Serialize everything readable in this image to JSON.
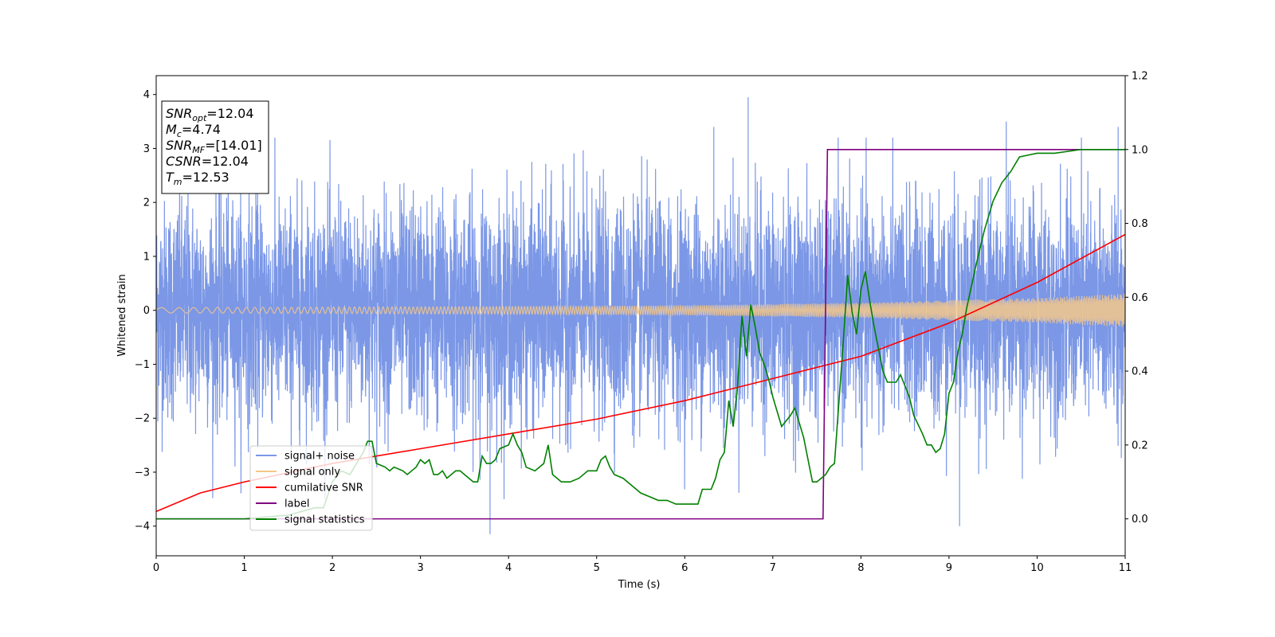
{
  "chart_data": {
    "type": "line",
    "xlabel": "Time (s)",
    "ylabel": "Whitened strain",
    "xlim": [
      0,
      11
    ],
    "ylim": [
      -4.55,
      4.35
    ],
    "y2lim": [
      -0.1,
      1.2
    ],
    "x_ticks": [
      "0",
      "1",
      "2",
      "3",
      "4",
      "5",
      "6",
      "7",
      "8",
      "9",
      "10",
      "11"
    ],
    "y_ticks": [
      "4",
      "3",
      "2",
      "1",
      "0",
      "−1",
      "−2",
      "−3",
      "−4"
    ],
    "y2_ticks": [
      "1.2",
      "1.0",
      "0.8",
      "0.6",
      "0.4",
      "0.2",
      "0.0"
    ],
    "grid": false,
    "legend": {
      "location": "lower-left",
      "entries": [
        "signal+ noise",
        "signal only",
        "cumilative SNR",
        "label",
        "signal statistics"
      ]
    },
    "annotation": [
      {
        "base": "SNR",
        "sub": "opt",
        "value": "=12.04"
      },
      {
        "base": "M",
        "sub": "c",
        "value": "=4.74"
      },
      {
        "base": "SNR",
        "sub": "MF",
        "value": "=[14.01]"
      },
      {
        "base": "CSNR",
        "sub": "",
        "value": "=12.04"
      },
      {
        "base": "T",
        "sub": "m",
        "value": "=12.53"
      }
    ],
    "series": [
      {
        "name": "signal+ noise",
        "axis": "left",
        "color": "#7b97e6",
        "description": "whitened noisy strain, roughly N(0,1) across 0-11 s",
        "noise_std": 1.0,
        "spikes": [
          [
            6.72,
            3.95
          ],
          [
            3.79,
            -4.15
          ],
          [
            9.12,
            -4.0
          ],
          [
            6.33,
            3.4
          ],
          [
            9.65,
            3.5
          ],
          [
            10.92,
            3.4
          ]
        ]
      },
      {
        "name": "signal only",
        "axis": "left",
        "color": "#f4c78a",
        "description": "chirp signal, amplitude grows with time",
        "amplitude": {
          "x": [
            0,
            2,
            4,
            6,
            8,
            10,
            11
          ],
          "y": [
            0.05,
            0.06,
            0.07,
            0.09,
            0.14,
            0.23,
            0.31
          ]
        }
      },
      {
        "name": "cumilative SNR",
        "axis": "right",
        "color": "#ff0000",
        "x": [
          0,
          0.5,
          1,
          2,
          3,
          4,
          5,
          6,
          7,
          8,
          9,
          10,
          11
        ],
        "y": [
          0.02,
          0.07,
          0.1,
          0.15,
          0.19,
          0.23,
          0.27,
          0.32,
          0.38,
          0.44,
          0.53,
          0.64,
          0.77
        ]
      },
      {
        "name": "label",
        "axis": "right",
        "color": "#800080",
        "x": [
          0,
          7.57,
          7.62,
          11
        ],
        "y": [
          0.0,
          0.0,
          1.0,
          1.0
        ]
      },
      {
        "name": "signal statistics",
        "axis": "right",
        "color": "#008000",
        "x": [
          0,
          0.5,
          1,
          1.5,
          1.8,
          1.9,
          2.0,
          2.1,
          2.2,
          2.35,
          2.4,
          2.45,
          2.5,
          2.6,
          2.65,
          2.7,
          2.8,
          2.85,
          2.9,
          2.95,
          3.0,
          3.05,
          3.1,
          3.15,
          3.2,
          3.25,
          3.3,
          3.35,
          3.4,
          3.45,
          3.5,
          3.6,
          3.65,
          3.7,
          3.75,
          3.8,
          3.85,
          3.9,
          4.0,
          4.05,
          4.1,
          4.15,
          4.2,
          4.3,
          4.4,
          4.45,
          4.5,
          4.55,
          4.6,
          4.7,
          4.8,
          4.9,
          5.0,
          5.05,
          5.1,
          5.15,
          5.2,
          5.3,
          5.4,
          5.5,
          5.6,
          5.7,
          5.8,
          5.9,
          6.0,
          6.1,
          6.15,
          6.2,
          6.3,
          6.35,
          6.4,
          6.45,
          6.5,
          6.55,
          6.6,
          6.65,
          6.7,
          6.75,
          6.8,
          6.85,
          6.9,
          6.95,
          7.0,
          7.1,
          7.2,
          7.25,
          7.3,
          7.35,
          7.4,
          7.45,
          7.5,
          7.6,
          7.65,
          7.7,
          7.8,
          7.85,
          7.9,
          7.95,
          8.0,
          8.05,
          8.1,
          8.15,
          8.2,
          8.25,
          8.3,
          8.4,
          8.45,
          8.5,
          8.55,
          8.6,
          8.7,
          8.75,
          8.8,
          8.85,
          8.9,
          8.95,
          9.0,
          9.05,
          9.1,
          9.15,
          9.2,
          9.3,
          9.4,
          9.5,
          9.6,
          9.7,
          9.8,
          9.9,
          10.0,
          10.2,
          10.5,
          11.0
        ],
        "y": [
          0.0,
          0.0,
          0.0,
          0.01,
          0.03,
          0.03,
          0.1,
          0.13,
          0.12,
          0.18,
          0.21,
          0.21,
          0.15,
          0.14,
          0.13,
          0.14,
          0.13,
          0.12,
          0.13,
          0.14,
          0.16,
          0.15,
          0.16,
          0.12,
          0.12,
          0.13,
          0.11,
          0.12,
          0.13,
          0.13,
          0.12,
          0.1,
          0.1,
          0.17,
          0.15,
          0.15,
          0.16,
          0.19,
          0.2,
          0.23,
          0.2,
          0.18,
          0.14,
          0.13,
          0.15,
          0.2,
          0.12,
          0.11,
          0.1,
          0.1,
          0.11,
          0.13,
          0.13,
          0.16,
          0.17,
          0.14,
          0.12,
          0.11,
          0.09,
          0.07,
          0.06,
          0.05,
          0.05,
          0.04,
          0.04,
          0.04,
          0.04,
          0.08,
          0.08,
          0.11,
          0.16,
          0.18,
          0.32,
          0.25,
          0.36,
          0.55,
          0.44,
          0.58,
          0.52,
          0.45,
          0.42,
          0.38,
          0.33,
          0.25,
          0.28,
          0.3,
          0.26,
          0.22,
          0.16,
          0.1,
          0.1,
          0.12,
          0.14,
          0.15,
          0.48,
          0.66,
          0.56,
          0.5,
          0.62,
          0.67,
          0.59,
          0.52,
          0.46,
          0.4,
          0.37,
          0.37,
          0.39,
          0.36,
          0.33,
          0.28,
          0.23,
          0.2,
          0.2,
          0.18,
          0.19,
          0.23,
          0.34,
          0.37,
          0.45,
          0.5,
          0.57,
          0.68,
          0.78,
          0.86,
          0.91,
          0.94,
          0.98,
          0.985,
          0.99,
          0.99,
          1.0,
          1.0
        ]
      }
    ]
  }
}
